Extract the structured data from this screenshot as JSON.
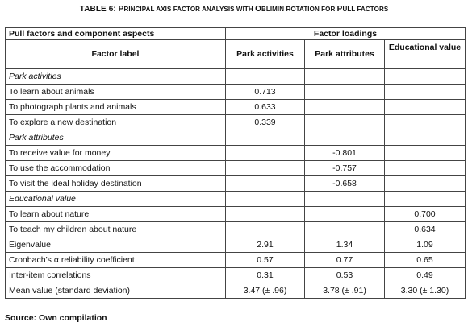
{
  "title": {
    "prefix": "TABLE 6: P",
    "p1": "RINCIPAL AXIS FACTOR ANALYSIS WITH ",
    "o": "O",
    "p2": "BLIMIN ROTATION FOR ",
    "p": "P",
    "p3": "ULL FACTORS"
  },
  "header": {
    "group_label": "Pull factors and component aspects",
    "loadings_label": "Factor loadings",
    "factor_label": "Factor label",
    "col1": "Park activities",
    "col2": "Park attributes",
    "col3": "Educational value"
  },
  "rows": [
    {
      "label": "Park activities",
      "section": true,
      "c1": "",
      "c2": "",
      "c3": ""
    },
    {
      "label": "To learn about animals",
      "c1": "0.713",
      "c2": "",
      "c3": ""
    },
    {
      "label": "To photograph plants and animals",
      "c1": "0.633",
      "c2": "",
      "c3": ""
    },
    {
      "label": "To explore a new destination",
      "c1": "0.339",
      "c2": "",
      "c3": ""
    },
    {
      "label": "Park attributes",
      "section": true,
      "c1": "",
      "c2": "",
      "c3": ""
    },
    {
      "label": "To receive value for money",
      "c1": "",
      "c2": "-0.801",
      "c3": ""
    },
    {
      "label": "To use the accommodation",
      "c1": "",
      "c2": "-0.757",
      "c3": ""
    },
    {
      "label": "To visit the ideal holiday destination",
      "c1": "",
      "c2": "-0.658",
      "c3": ""
    },
    {
      "label": "Educational value",
      "section": true,
      "c1": "",
      "c2": "",
      "c3": ""
    },
    {
      "label": "To learn about nature",
      "c1": "",
      "c2": "",
      "c3": "0.700"
    },
    {
      "label": "To teach my children about nature",
      "c1": "",
      "c2": "",
      "c3": "0.634"
    },
    {
      "label": "Eigenvalue",
      "c1": "2.91",
      "c2": "1.34",
      "c3": "1.09"
    },
    {
      "label": "Cronbach’s α reliability coefficient",
      "c1": "0.57",
      "c2": "0.77",
      "c3": "0.65"
    },
    {
      "label": "Inter-item correlations",
      "c1": "0.31",
      "c2": "0.53",
      "c3": "0.49"
    },
    {
      "label": "Mean value (standard deviation)",
      "c1": "3.47 (± .96)",
      "c2": "3.78 (± .91)",
      "c3": "3.30 (± 1.30)"
    }
  ],
  "source": "Source: Own compilation"
}
